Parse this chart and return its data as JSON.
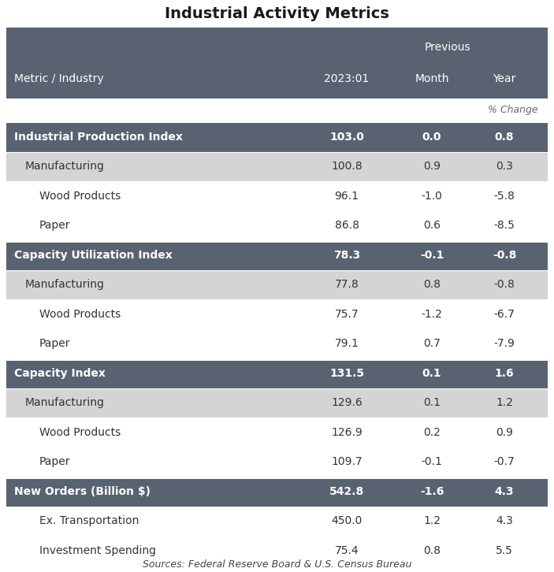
{
  "title": "Industrial Activity Metrics",
  "rows": [
    {
      "label": "Industrial Production Index",
      "val1": "103.0",
      "val2": "0.0",
      "val3": "0.8",
      "type": "dark_header"
    },
    {
      "label": "Manufacturing",
      "val1": "100.8",
      "val2": "0.9",
      "val3": "0.3",
      "type": "light_header"
    },
    {
      "label": "Wood Products",
      "val1": "96.1",
      "val2": "-1.0",
      "val3": "-5.8",
      "type": "white"
    },
    {
      "label": "Paper",
      "val1": "86.8",
      "val2": "0.6",
      "val3": "-8.5",
      "type": "white"
    },
    {
      "label": "Capacity Utilization Index",
      "val1": "78.3",
      "val2": "-0.1",
      "val3": "-0.8",
      "type": "dark_header"
    },
    {
      "label": "Manufacturing",
      "val1": "77.8",
      "val2": "0.8",
      "val3": "-0.8",
      "type": "light_header"
    },
    {
      "label": "Wood Products",
      "val1": "75.7",
      "val2": "-1.2",
      "val3": "-6.7",
      "type": "white"
    },
    {
      "label": "Paper",
      "val1": "79.1",
      "val2": "0.7",
      "val3": "-7.9",
      "type": "white"
    },
    {
      "label": "Capacity Index",
      "val1": "131.5",
      "val2": "0.1",
      "val3": "1.6",
      "type": "dark_header"
    },
    {
      "label": "Manufacturing",
      "val1": "129.6",
      "val2": "0.1",
      "val3": "1.2",
      "type": "light_header"
    },
    {
      "label": "Wood Products",
      "val1": "126.9",
      "val2": "0.2",
      "val3": "0.9",
      "type": "white"
    },
    {
      "label": "Paper",
      "val1": "109.7",
      "val2": "-0.1",
      "val3": "-0.7",
      "type": "white"
    },
    {
      "label": "New Orders (Billion $)",
      "val1": "542.8",
      "val2": "-1.6",
      "val3": "4.3",
      "type": "dark_header"
    },
    {
      "label": "Ex. Transportation",
      "val1": "450.0",
      "val2": "1.2",
      "val3": "4.3",
      "type": "white"
    },
    {
      "label": "Investment Spending",
      "val1": "75.4",
      "val2": "0.8",
      "val3": "5.5",
      "type": "white"
    }
  ],
  "footer": "Sources: Federal Reserve Board & U.S. Census Bureau",
  "dark_header_bg": "#596270",
  "dark_header_fg": "#ffffff",
  "light_header_bg": "#d4d4d4",
  "light_header_fg": "#333333",
  "white_bg": "#ffffff",
  "white_fg": "#333333",
  "header_bg": "#596270",
  "header_fg": "#ffffff",
  "fig_width": 7.03,
  "fig_height": 7.26,
  "title_fontsize": 14,
  "header_fontsize": 10,
  "data_fontsize": 10,
  "footer_fontsize": 9
}
